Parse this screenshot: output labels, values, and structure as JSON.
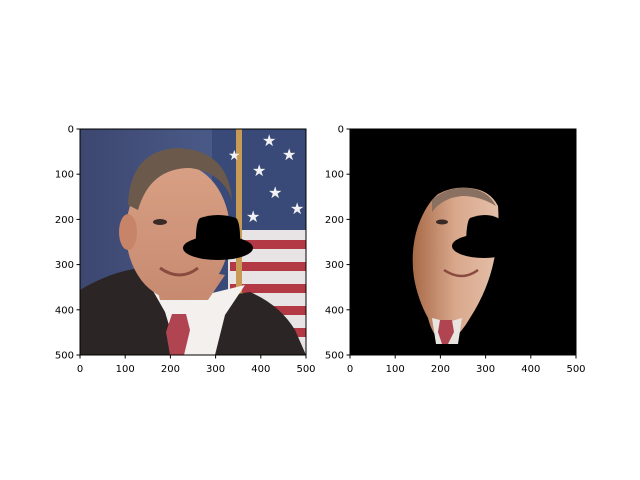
{
  "figure": {
    "panels": [
      {
        "name": "left-panel",
        "image": "photo-with-black-hat-mask",
        "xticks": [
          "0",
          "100",
          "200",
          "300",
          "400",
          "500"
        ],
        "yticks": [
          "0",
          "100",
          "200",
          "300",
          "400",
          "500"
        ]
      },
      {
        "name": "right-panel",
        "image": "segmented-face-on-black",
        "xticks": [
          "0",
          "100",
          "200",
          "300",
          "400",
          "500"
        ],
        "yticks": [
          "0",
          "100",
          "200",
          "300",
          "400",
          "500"
        ]
      }
    ],
    "tick_values": [
      0,
      100,
      200,
      300,
      400,
      500
    ],
    "xlim": [
      0,
      500
    ],
    "ylim": [
      500,
      0
    ],
    "colors": {
      "axes_frame": "#000000",
      "mask": "#000000",
      "background": "#ffffff"
    }
  }
}
